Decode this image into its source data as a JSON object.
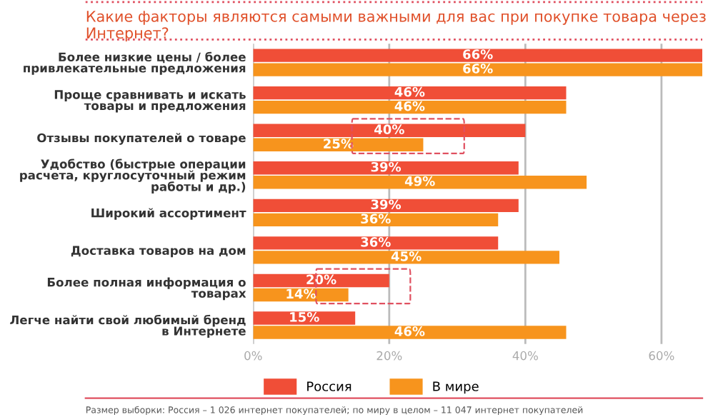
{
  "chart_data": {
    "type": "bar",
    "orientation": "horizontal",
    "title": "Какие факторы являются самыми важными для вас при покупке товара через Интернет?",
    "categories": [
      "Более низкие цены / более привлекательные предложения",
      "Проще сравнивать и искать товары и предложения",
      "Отзывы покупателей о товаре",
      "Удобство (быстрые операции расчета, круглосуточный режим работы и др.)",
      "Широкий ассортимент",
      "Доставка товаров на дом",
      "Более полная информация о товарах",
      "Легче найти свой любимый бренд в Интернете"
    ],
    "series": [
      {
        "name": "Россия",
        "color": "#f04e37",
        "values": [
          66,
          46,
          40,
          39,
          39,
          36,
          20,
          15
        ],
        "value_labels": [
          "66%",
          "46%",
          "40%",
          "39%",
          "39%",
          "36%",
          "20%",
          "15%"
        ]
      },
      {
        "name": "В мире",
        "color": "#f7941d",
        "values": [
          66,
          46,
          25,
          49,
          36,
          45,
          14,
          46
        ],
        "value_labels": [
          "66%",
          "46%",
          "25%",
          "49%",
          "36%",
          "45%",
          "14%",
          "46%"
        ]
      }
    ],
    "xlim": [
      0,
      66
    ],
    "xticks": [
      {
        "value": 0,
        "label": "0%"
      },
      {
        "value": 20,
        "label": "20%"
      },
      {
        "value": 40,
        "label": "40%"
      },
      {
        "value": 60,
        "label": "60%"
      }
    ],
    "grid": "x",
    "legend": "bottom",
    "annotations": [
      "Размер выборки: Россия – 1 026 интернет покупателей; по миру в целом – 11 047 интернет покупателей"
    ]
  }
}
